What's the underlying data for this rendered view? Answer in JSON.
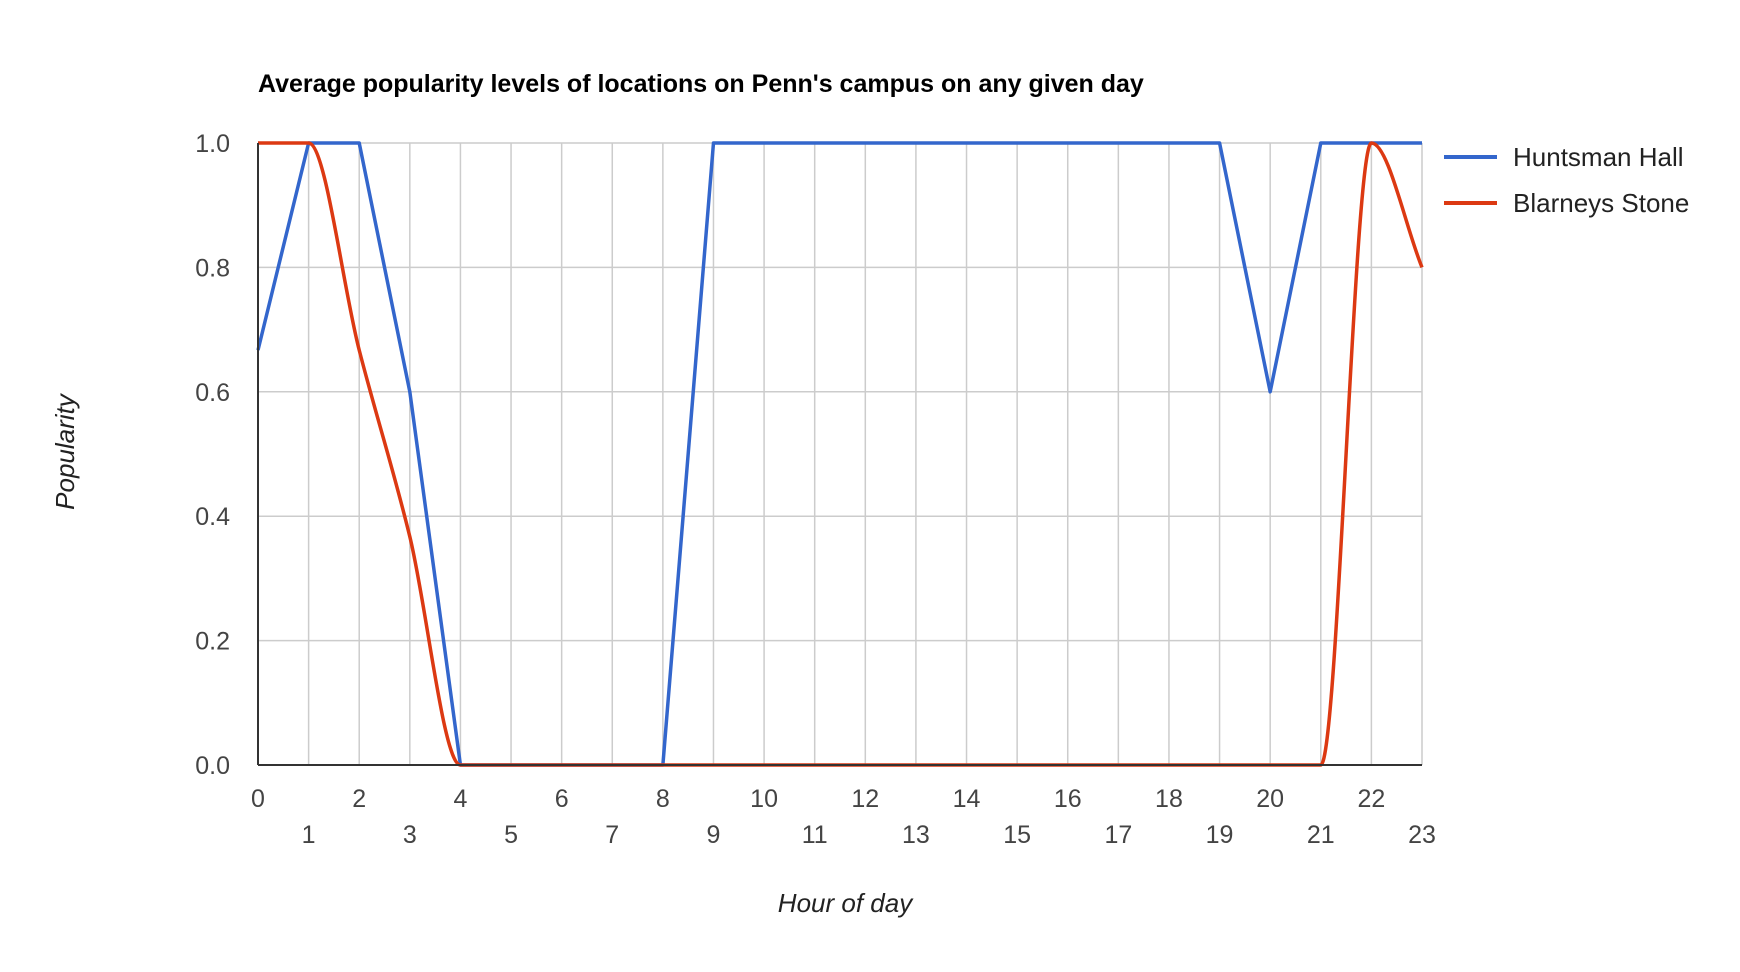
{
  "chart_data": {
    "type": "line",
    "title": "Average popularity levels of locations on Penn's campus on any given day",
    "xlabel": "Hour of day",
    "ylabel": "Popularity",
    "x": [
      0,
      1,
      2,
      3,
      4,
      5,
      6,
      7,
      8,
      9,
      10,
      11,
      12,
      13,
      14,
      15,
      16,
      17,
      18,
      19,
      20,
      21,
      22,
      23
    ],
    "xlim": [
      0,
      23
    ],
    "ylim": [
      0,
      1
    ],
    "x_ticks": [
      "0",
      "1",
      "2",
      "3",
      "4",
      "5",
      "6",
      "7",
      "8",
      "9",
      "10",
      "11",
      "12",
      "13",
      "14",
      "15",
      "16",
      "17",
      "18",
      "19",
      "20",
      "21",
      "22",
      "23"
    ],
    "y_ticks": [
      "0.0",
      "0.2",
      "0.4",
      "0.6",
      "0.8",
      "1.0"
    ],
    "grid": true,
    "legend_position": "right",
    "series": [
      {
        "name": "Huntsman Hall",
        "color": "#3366cc",
        "smooth": false,
        "values": [
          0.667,
          1,
          1,
          0.6,
          0,
          0,
          0,
          0,
          0,
          1,
          1,
          1,
          1,
          1,
          1,
          1,
          1,
          1,
          1,
          1,
          0.6,
          1,
          1,
          1
        ]
      },
      {
        "name": "Blarneys Stone",
        "color": "#dc3912",
        "smooth": true,
        "values": [
          1,
          1,
          0.667,
          0.367,
          0,
          0,
          0,
          0,
          0,
          0,
          0,
          0,
          0,
          0,
          0,
          0,
          0,
          0,
          0,
          0,
          0,
          0,
          1,
          0.8
        ]
      }
    ]
  }
}
